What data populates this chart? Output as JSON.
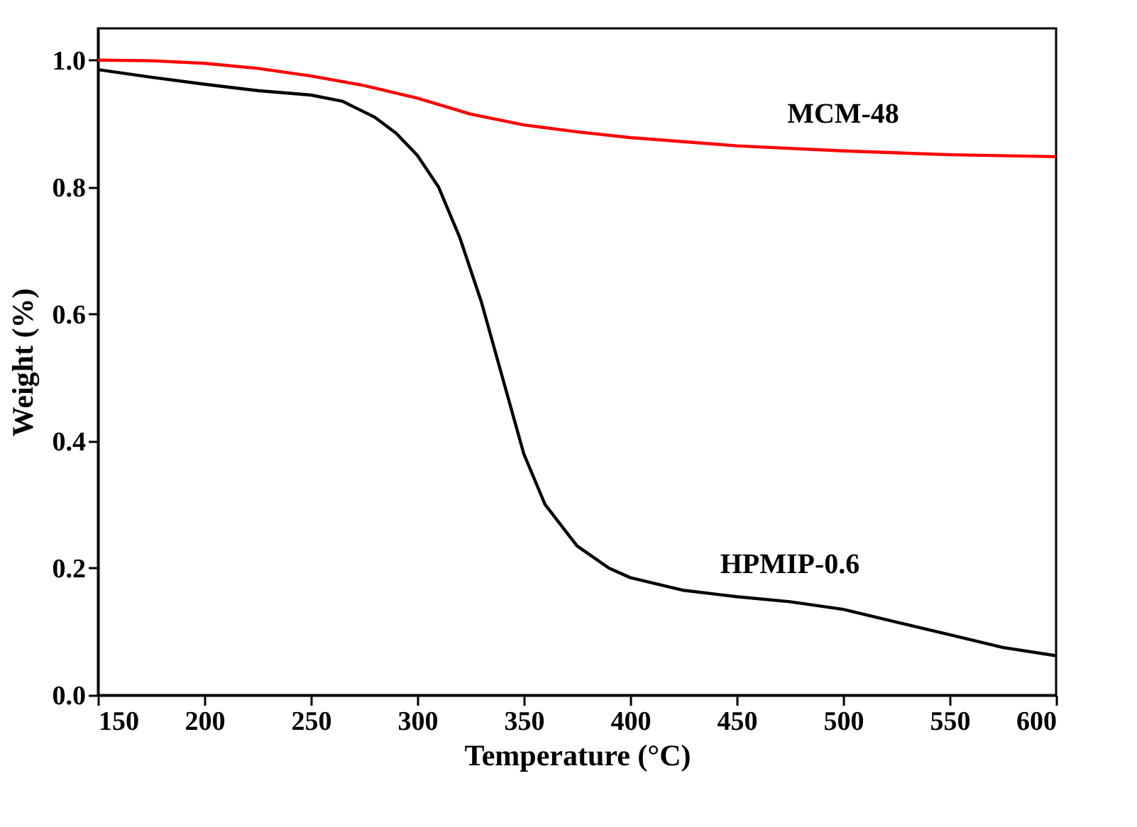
{
  "chart_data": {
    "type": "line",
    "xlabel": "Temperature (°C)",
    "ylabel": "Weight (%)",
    "xlim": [
      150,
      600
    ],
    "xticks": [
      150,
      200,
      250,
      300,
      350,
      400,
      450,
      500,
      550,
      600
    ],
    "ylim": [
      0,
      1.05
    ],
    "yticks": [
      {
        "value": 0,
        "label": "0.0"
      },
      {
        "value": 0.2,
        "label": "0.2"
      },
      {
        "value": 0.4,
        "label": "0.4"
      },
      {
        "value": 0.6,
        "label": "0.6"
      },
      {
        "value": 0.8,
        "label": "0.8"
      },
      {
        "value": 1,
        "label": "1.0"
      }
    ],
    "grid": false,
    "legend": false,
    "marker": "none",
    "line_style": "solid",
    "series": [
      {
        "name": "MCM-48",
        "color": "#ff0000",
        "x": [
          150,
          175,
          200,
          225,
          250,
          275,
          300,
          325,
          350,
          375,
          400,
          450,
          500,
          550,
          600
        ],
        "values": [
          1.0,
          0.999,
          0.995,
          0.987,
          0.975,
          0.96,
          0.94,
          0.915,
          0.898,
          0.887,
          0.878,
          0.865,
          0.857,
          0.851,
          0.848
        ]
      },
      {
        "name": "HPMIP-0.6",
        "color": "#000000",
        "x": [
          150,
          175,
          200,
          225,
          250,
          265,
          280,
          290,
          300,
          310,
          320,
          330,
          340,
          350,
          360,
          375,
          390,
          400,
          425,
          450,
          475,
          500,
          525,
          550,
          575,
          600
        ],
        "values": [
          0.985,
          0.973,
          0.962,
          0.952,
          0.945,
          0.935,
          0.91,
          0.885,
          0.85,
          0.8,
          0.72,
          0.62,
          0.5,
          0.38,
          0.3,
          0.235,
          0.2,
          0.185,
          0.165,
          0.155,
          0.147,
          0.135,
          0.115,
          0.095,
          0.075,
          0.062
        ]
      }
    ]
  }
}
